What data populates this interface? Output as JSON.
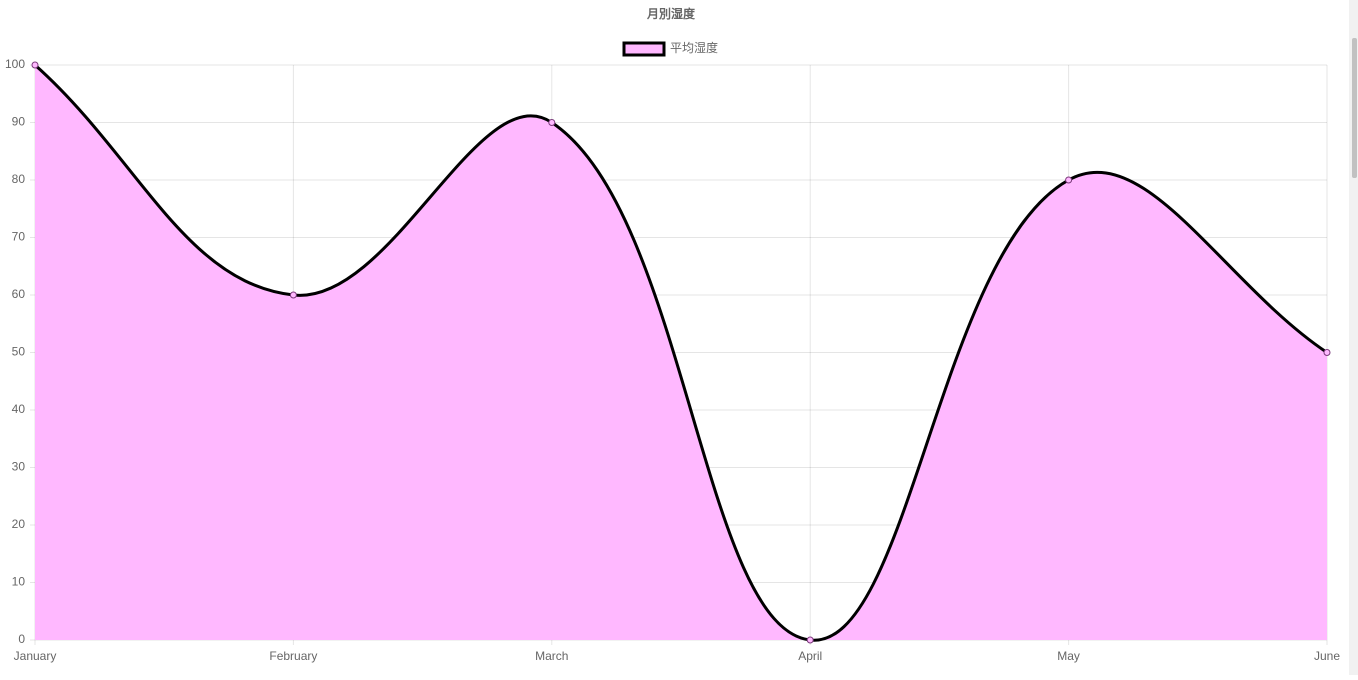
{
  "chart_data": {
    "type": "line",
    "title": "月別湿度",
    "categories": [
      "January",
      "February",
      "March",
      "April",
      "May",
      "June"
    ],
    "series": [
      {
        "name": "平均湿度",
        "color": "#000000",
        "fill": "#ffb8ff",
        "values": [
          100,
          60,
          90,
          0,
          80,
          50
        ]
      }
    ],
    "ylim": [
      0,
      100
    ],
    "yticks": [
      0,
      10,
      20,
      30,
      40,
      50,
      60,
      70,
      80,
      90,
      100
    ],
    "grid": true,
    "legend": "top"
  }
}
